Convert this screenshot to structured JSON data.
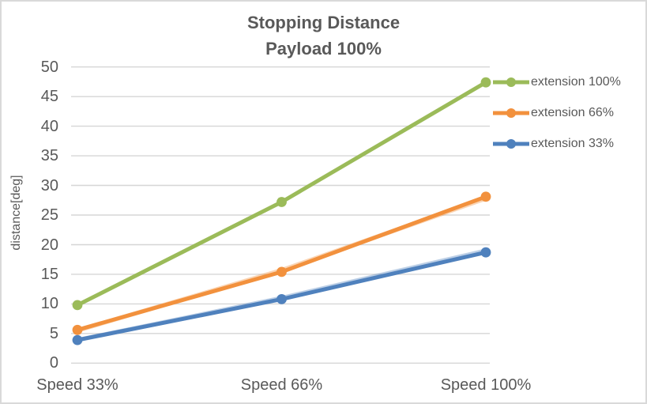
{
  "title": "Stopping Distance",
  "subtitle": "Payload 100%",
  "colors": {
    "text": "#595959",
    "grid": "#d6d6d6",
    "frame_border": "#d9d9d9",
    "background": "#ffffff"
  },
  "chart_data": {
    "type": "line",
    "title": "Stopping Distance",
    "subtitle": "Payload 100%",
    "categories": [
      "Speed 33%",
      "Speed 66%",
      "Speed 100%"
    ],
    "series": [
      {
        "name": "extension 100%",
        "color": "#9bbb59",
        "values": [
          9.8,
          27.2,
          47.4
        ]
      },
      {
        "name": "extension 66%",
        "color": "#f2913d",
        "values": [
          5.6,
          15.4,
          28.1
        ],
        "echo_values": [
          5.5,
          15.7,
          27.8
        ]
      },
      {
        "name": "extension 33%",
        "color": "#4f81bd",
        "values": [
          3.9,
          10.8,
          18.7
        ],
        "echo_values": [
          3.9,
          11.0,
          19.0
        ]
      }
    ],
    "xlabel": "",
    "ylabel": "distance[deg]",
    "ylim": [
      0,
      50
    ],
    "ytick_step": 5,
    "grid": true,
    "grid_color": "#d6d6d6",
    "legend_position": "right",
    "marker": "circle"
  }
}
